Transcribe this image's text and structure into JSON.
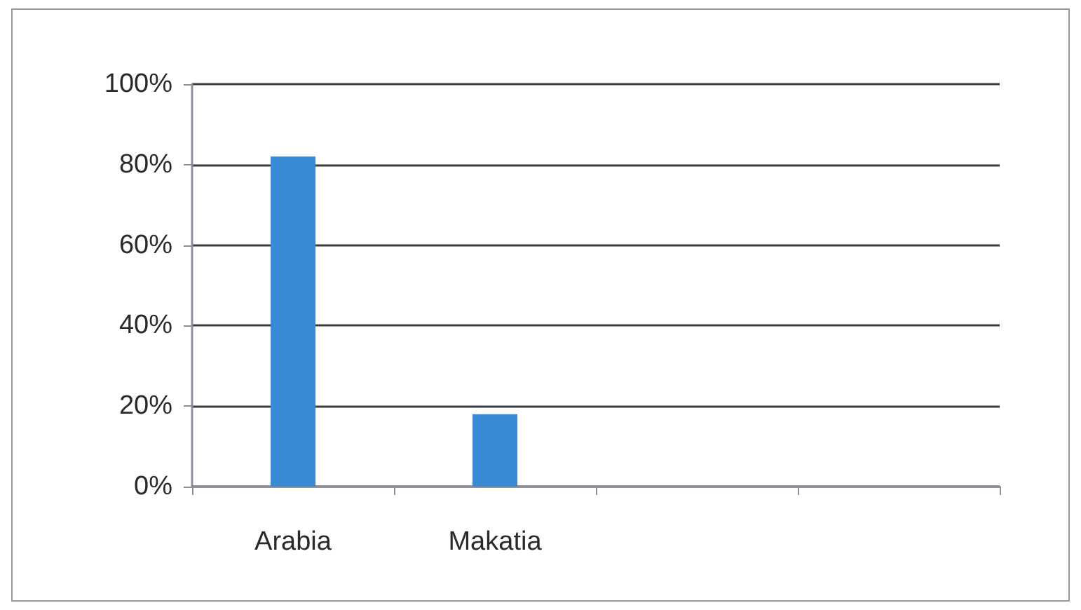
{
  "chart_data": {
    "type": "bar",
    "categories": [
      "Arabia",
      "Makatia",
      null,
      null
    ],
    "values": [
      82,
      18,
      null,
      null
    ],
    "color": "#3a8ad6",
    "ylim": [
      0,
      100
    ],
    "yticks": [
      {
        "value": 0,
        "label": "0%"
      },
      {
        "value": 20,
        "label": "20%"
      },
      {
        "value": 40,
        "label": "40%"
      },
      {
        "value": 60,
        "label": "60%"
      },
      {
        "value": 80,
        "label": "80%"
      },
      {
        "value": 100,
        "label": "100%"
      }
    ],
    "grid": "y"
  }
}
